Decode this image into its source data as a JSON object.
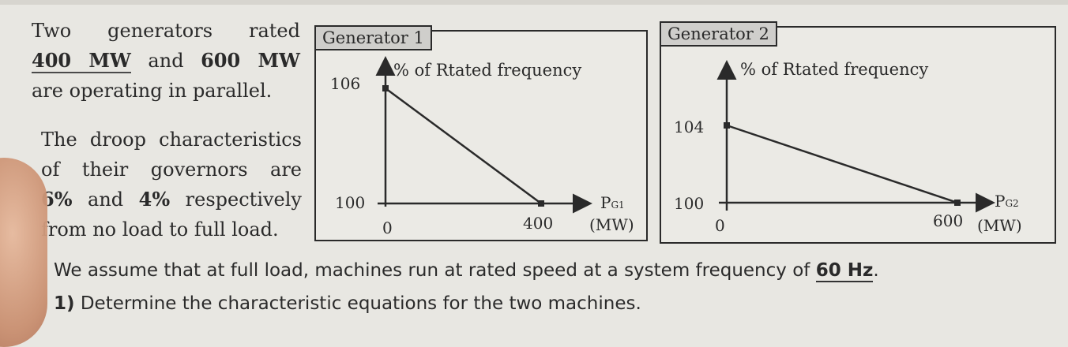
{
  "intro": {
    "lines": [
      {
        "pre": "Two generators rated",
        "b1": "",
        "mid": "",
        "b2": "",
        "post": ""
      },
      {
        "pre": "",
        "b1": "400 MW",
        "mid": " and ",
        "b2": "600 MW",
        "post": ""
      },
      {
        "pre": "are operating in parallel.",
        "b1": "",
        "mid": "",
        "b2": "",
        "post": ""
      }
    ]
  },
  "droop": {
    "line1": "The droop characteristics",
    "line2": "of their governors are",
    "line3_b1": "6%",
    "line3_mid": " and ",
    "line3_b2": "4%",
    "line3_post": " respectively",
    "line4": "from no load to full load."
  },
  "generator1": {
    "tag": "Generator 1",
    "ylabel": "% of Rtated frequency",
    "y_high": "106",
    "y_low": "100",
    "x_zero": "0",
    "x_full": "400",
    "x_axis_label": "P",
    "x_axis_sub": "G1",
    "x_unit": "(MW)"
  },
  "generator2": {
    "tag": "Generator 2",
    "ylabel": "% of Rtated frequency",
    "y_high": "104",
    "y_low": "100",
    "x_zero": "0",
    "x_full": "600",
    "x_axis_label": "P",
    "x_axis_sub": "G2",
    "x_unit": "(MW)"
  },
  "assumption": {
    "pre": "We assume that at full load, machines run at rated speed at a system frequency of ",
    "hz": "60 Hz",
    "post": "."
  },
  "question1": {
    "num": "1)",
    "text": " Determine the characteristic equations for the two machines."
  }
}
